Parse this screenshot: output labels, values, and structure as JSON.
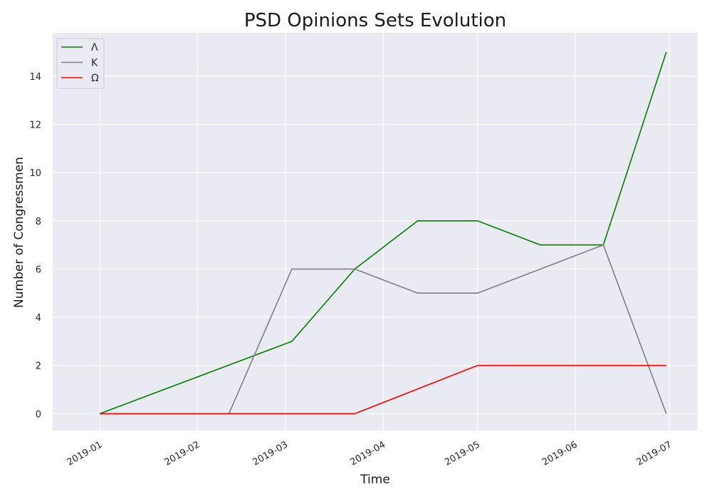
{
  "chart_data": {
    "type": "line",
    "title": "PSD Opinions Sets Evolution",
    "xlabel": "Time",
    "ylabel": "Number of Congressmen",
    "x_ticks": [
      "2019-01",
      "2019-02",
      "2019-03",
      "2019-04",
      "2019-05",
      "2019-06",
      "2019-07"
    ],
    "y_ticks": [
      "0",
      "2",
      "4",
      "6",
      "8",
      "10",
      "12",
      "14"
    ],
    "xlim": [
      "2018-12-17",
      "2019-07-10"
    ],
    "ylim": [
      -0.7,
      15.8
    ],
    "grid": true,
    "legend_position": "top-left",
    "series": [
      {
        "name": "Λ",
        "color": "#008000",
        "x": [
          "2019-01-01",
          "2019-03-03",
          "2019-03-23",
          "2019-04-12",
          "2019-05-01",
          "2019-05-21",
          "2019-06-10",
          "2019-06-30"
        ],
        "y": [
          0,
          3,
          6,
          8,
          8,
          7,
          7,
          15
        ]
      },
      {
        "name": "K",
        "color": "#808080",
        "x": [
          "2019-01-01",
          "2019-02-11",
          "2019-03-03",
          "2019-03-23",
          "2019-04-12",
          "2019-05-01",
          "2019-06-10",
          "2019-06-30"
        ],
        "y": [
          0,
          0,
          6,
          6,
          5,
          5,
          7,
          0
        ]
      },
      {
        "name": "Ω",
        "color": "#ff0000",
        "x": [
          "2019-01-01",
          "2019-03-23",
          "2019-05-01",
          "2019-06-30"
        ],
        "y": [
          0,
          0,
          2,
          2
        ]
      }
    ]
  }
}
